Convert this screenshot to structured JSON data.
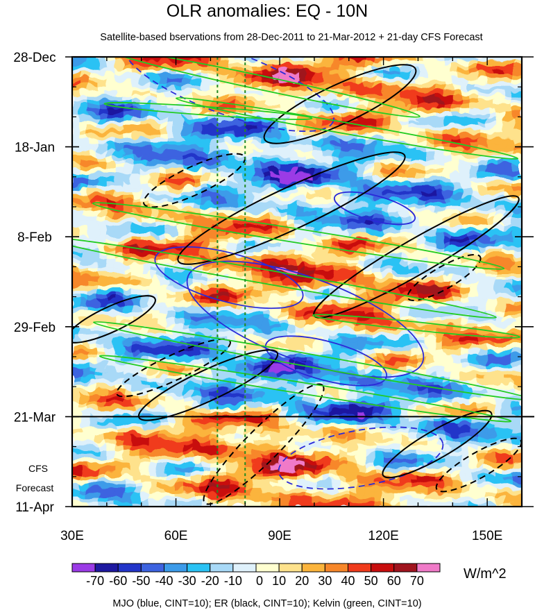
{
  "chart_data": {
    "type": "heatmap",
    "title": "OLR anomalies: EQ - 10N",
    "subtitle": "Satellite-based bservations from 28-Dec-2011 to 21-Mar-2012 + 21-day CFS Forecast",
    "x_axis": {
      "range": [
        30,
        160
      ],
      "ticks": [
        {
          "value": 30,
          "label": "30E"
        },
        {
          "value": 60,
          "label": "60E"
        },
        {
          "value": 90,
          "label": "90E"
        },
        {
          "value": 120,
          "label": "120E"
        },
        {
          "value": 150,
          "label": "150E"
        }
      ]
    },
    "y_axis": {
      "range": [
        "2011-12-28",
        "2012-04-11"
      ],
      "ticks": [
        {
          "value": "2011-12-28",
          "label": "28-Dec"
        },
        {
          "value": "2012-01-18",
          "label": "18-Jan"
        },
        {
          "value": "2012-02-08",
          "label": "8-Feb"
        },
        {
          "value": "2012-02-29",
          "label": "29-Feb"
        },
        {
          "value": "2012-03-21",
          "label": "21-Mar"
        },
        {
          "value": "2012-04-11",
          "label": "11-Apr"
        }
      ]
    },
    "forecast_start": "2012-03-21",
    "forecast_label": [
      "CFS",
      "Forecast"
    ],
    "reference_longitudes": [
      72,
      80
    ],
    "colorbar": {
      "unit": "W/m^2",
      "levels": [
        -70,
        -60,
        -50,
        -40,
        -30,
        -20,
        -10,
        0,
        10,
        20,
        30,
        40,
        50,
        60,
        70
      ],
      "colors": [
        "#9b3be6",
        "#1e19a0",
        "#2335c9",
        "#3d63e0",
        "#3c9be9",
        "#2ac2f4",
        "#a8d9f7",
        "#dff1fb",
        "#ffffd0",
        "#fee28c",
        "#fbb43c",
        "#f7872a",
        "#f03b1c",
        "#c80e0e",
        "#a0141e",
        "#f07ac8"
      ]
    },
    "contour_legend": "MJO (blue, CINT=10); ER (black, CINT=10); Kelvin (green, CINT=10)",
    "contour_colors": {
      "mjo": "#2a2ad8",
      "er": "#000000",
      "kelvin": "#22cc22",
      "reference_lines": "#238b23"
    }
  }
}
